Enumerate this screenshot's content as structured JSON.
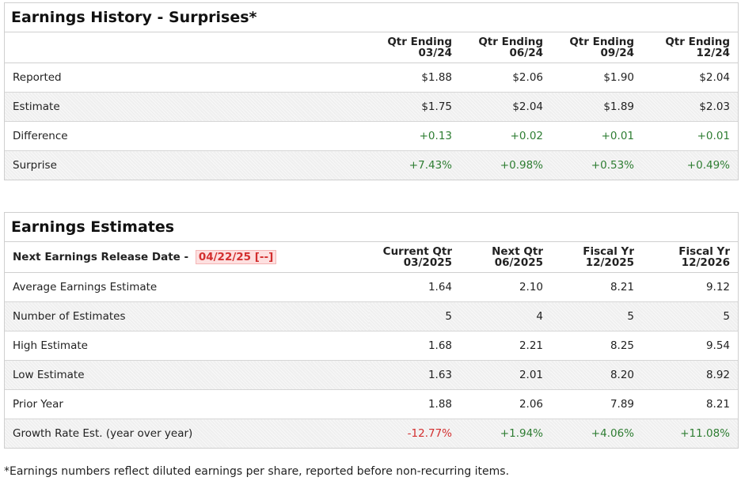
{
  "history": {
    "title": "Earnings History - Surprises*",
    "columns": [
      {
        "line1": "Qtr Ending",
        "line2": "03/24"
      },
      {
        "line1": "Qtr Ending",
        "line2": "06/24"
      },
      {
        "line1": "Qtr Ending",
        "line2": "09/24"
      },
      {
        "line1": "Qtr Ending",
        "line2": "12/24"
      }
    ],
    "rows": [
      {
        "label": "Reported",
        "values": [
          "$1.88",
          "$2.06",
          "$1.90",
          "$2.04"
        ]
      },
      {
        "label": "Estimate",
        "values": [
          "$1.75",
          "$2.04",
          "$1.89",
          "$2.03"
        ]
      },
      {
        "label": "Difference",
        "values": [
          "+0.13",
          "+0.02",
          "+0.01",
          "+0.01"
        ]
      },
      {
        "label": "Surprise",
        "values": [
          "+7.43%",
          "+0.98%",
          "+0.53%",
          "+0.49%"
        ]
      }
    ]
  },
  "estimates": {
    "title": "Earnings Estimates",
    "release_label": "Next Earnings Release Date -",
    "release_date": "04/22/25 [--]",
    "columns": [
      {
        "line1": "Current Qtr",
        "line2": "03/2025"
      },
      {
        "line1": "Next Qtr",
        "line2": "06/2025"
      },
      {
        "line1": "Fiscal Yr",
        "line2": "12/2025"
      },
      {
        "line1": "Fiscal Yr",
        "line2": "12/2026"
      }
    ],
    "rows": [
      {
        "label": "Average Earnings Estimate",
        "values": [
          "1.64",
          "2.10",
          "8.21",
          "9.12"
        ]
      },
      {
        "label": "Number of Estimates",
        "values": [
          "5",
          "4",
          "5",
          "5"
        ]
      },
      {
        "label": "High Estimate",
        "values": [
          "1.68",
          "2.21",
          "8.25",
          "9.54"
        ]
      },
      {
        "label": "Low Estimate",
        "values": [
          "1.63",
          "2.01",
          "8.20",
          "8.92"
        ]
      },
      {
        "label": "Prior Year",
        "values": [
          "1.88",
          "2.06",
          "7.89",
          "8.21"
        ]
      },
      {
        "label": "Growth Rate Est. (year over year)",
        "values": [
          "-12.77%",
          "+1.94%",
          "+4.06%",
          "+11.08%"
        ]
      }
    ]
  },
  "footnote": "*Earnings numbers reflect diluted earnings per share, reported before non-recurring items.",
  "colors": {
    "positive": "#2e7d32",
    "negative": "#d32f2f"
  }
}
